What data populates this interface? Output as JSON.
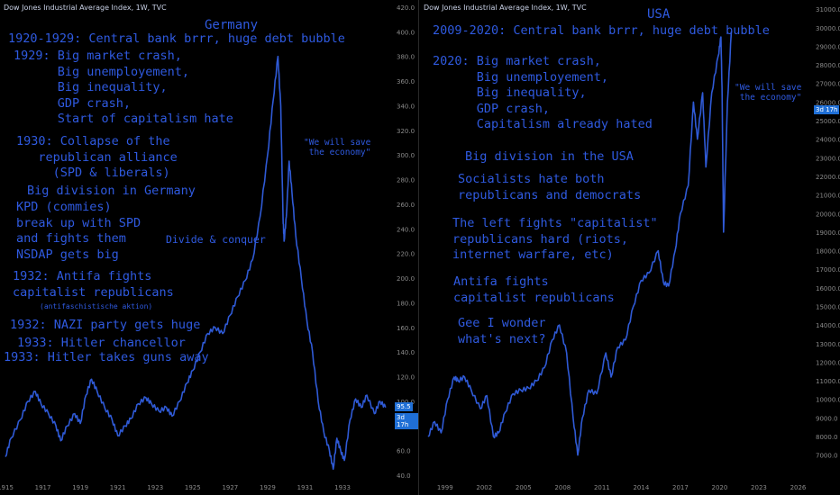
{
  "chart_data": [
    {
      "type": "line",
      "title": "Dow Jones Industrial Average Index, 1W, TVC",
      "region_label": "Germany",
      "x_ticks": [
        "1915",
        "1917",
        "1919",
        "1921",
        "1923",
        "1925",
        "1927",
        "1929",
        "1931",
        "1933"
      ],
      "y_ticks": [
        "40.0",
        "60.0",
        "80.0",
        "100.0",
        "120.0",
        "140.0",
        "160.0",
        "180.0",
        "200.0",
        "220.0",
        "240.0",
        "260.0",
        "280.0",
        "300.0",
        "320.0",
        "340.0",
        "360.0",
        "380.0",
        "400.0",
        "420.0"
      ],
      "xlim": [
        1915.0,
        1935.5
      ],
      "ylim": [
        40,
        420
      ],
      "series": [
        {
          "x": [
            1915.0,
            1915.3,
            1915.8,
            1916.2,
            1916.6,
            1916.9,
            1917.3,
            1917.7,
            1917.95,
            1918.3,
            1918.7,
            1919.0,
            1919.3,
            1919.6,
            1919.9,
            1920.3,
            1920.7,
            1921.0,
            1921.4,
            1921.7,
            1922.1,
            1922.5,
            1922.8,
            1923.2,
            1923.6,
            1923.9,
            1924.3,
            1924.7,
            1925.0,
            1925.4,
            1925.8,
            1926.2,
            1926.6,
            1927.0,
            1927.4,
            1927.8,
            1928.2,
            1928.6,
            1929.0,
            1929.3,
            1929.55,
            1929.7,
            1929.82,
            1929.88,
            1930.0,
            1930.15,
            1930.3,
            1930.5,
            1930.8,
            1931.1,
            1931.4,
            1931.7,
            1932.0,
            1932.3,
            1932.5,
            1932.7,
            1932.9,
            1933.1,
            1933.4,
            1933.7,
            1934.0,
            1934.3,
            1934.7,
            1935.0,
            1935.3
          ],
          "y": [
            55,
            70,
            85,
            100,
            108,
            98,
            90,
            80,
            68,
            80,
            90,
            82,
            105,
            118,
            108,
            95,
            85,
            72,
            80,
            86,
            98,
            103,
            98,
            92,
            95,
            88,
            100,
            115,
            125,
            140,
            155,
            160,
            155,
            170,
            185,
            198,
            215,
            250,
            300,
            345,
            380,
            340,
            250,
            230,
            250,
            295,
            270,
            235,
            200,
            165,
            140,
            100,
            75,
            60,
            45,
            70,
            60,
            52,
            85,
            102,
            95,
            105,
            90,
            100,
            95
          ]
        }
      ],
      "last_value": "95.5",
      "countdown": "3d 17h",
      "annotations": {
        "line1": "1920-1929: Central bank brrr, huge debt bubble",
        "block2": "1929: Big market crash,\n      Big unemployement,\n      Big inequality,\n      GDP crash,\n      Start of capitalism hate",
        "block3": "1930: Collapse of the\n   republican alliance\n     (SPD & liberals)",
        "block4": "Big division in Germany",
        "block5": "KPD (commies)\nbreak up with SPD\nand fights them\nNSDAP gets big",
        "divide": "Divide & conquer",
        "save": "\"We will save\n the economy\"",
        "block6": "1932: Antifa fights\ncapitalist republicans",
        "antifa": "(antifaschistische aktion)",
        "block7": "1932: NAZI party gets huge",
        "block8": "1933: Hitler chancellor",
        "block9": "1933: Hitler takes guns away"
      }
    },
    {
      "type": "line",
      "title": "Dow Jones Industrial Average Index, 1W, TVC",
      "region_label": "USA",
      "x_ticks": [
        "1999",
        "2002",
        "2005",
        "2008",
        "2011",
        "2014",
        "2017",
        "2020",
        "2023",
        "2026"
      ],
      "y_ticks": [
        "7000.0",
        "8000.0",
        "9000.0",
        "10000.0",
        "11000.0",
        "12000.0",
        "13000.0",
        "14000.0",
        "15000.0",
        "16000.0",
        "17000.0",
        "18000.0",
        "19000.0",
        "20000.0",
        "21000.0",
        "22000.0",
        "23000.0",
        "24000.0",
        "25000.0",
        "26000.0",
        "27000.0",
        "28000.0",
        "29000.0",
        "30000.0",
        "31000.0"
      ],
      "xlim": [
        1997.5,
        2027.0
      ],
      "ylim": [
        6500,
        31200
      ],
      "series": [
        {
          "x": [
            1997.7,
            1998.2,
            1998.7,
            1999.2,
            1999.7,
            2000.0,
            2000.5,
            2001.0,
            2001.7,
            2002.2,
            2002.7,
            2003.1,
            2003.6,
            2004.2,
            2004.8,
            2005.4,
            2006.0,
            2006.6,
            2007.2,
            2007.75,
            2008.3,
            2008.8,
            2009.15,
            2009.5,
            2010.0,
            2010.6,
            2011.3,
            2011.7,
            2012.2,
            2012.8,
            2013.4,
            2014.0,
            2014.6,
            2015.3,
            2015.7,
            2016.1,
            2016.6,
            2017.0,
            2017.6,
            2018.0,
            2018.3,
            2018.7,
            2018.95,
            2019.4,
            2019.9,
            2020.1,
            2020.2,
            2020.3,
            2020.6,
            2020.9
          ],
          "y": [
            8000,
            8800,
            8200,
            10000,
            11200,
            11000,
            11200,
            10500,
            9500,
            10200,
            8000,
            8200,
            9300,
            10300,
            10500,
            10600,
            11000,
            11700,
            13200,
            14000,
            12500,
            9000,
            7000,
            9000,
            10500,
            10300,
            12500,
            11200,
            12800,
            13200,
            15000,
            16400,
            16800,
            18000,
            16300,
            16100,
            18000,
            20000,
            21500,
            26000,
            24000,
            26500,
            22500,
            26500,
            28500,
            29500,
            26000,
            19000,
            26000,
            29800
          ]
        }
      ],
      "last_value": "3d 17h",
      "annotations": {
        "line1": "2009-2020: Central bank brrr, huge debt bubble",
        "save": "\"We will save\n the economy\"",
        "block2": "2020: Big market crash,\n      Big unemployement,\n      Big inequality,\n      GDP crash,\n      Capitalism already hated",
        "block3": "Big division in the USA",
        "block4": "Socialists hate both\nrepublicans and democrats",
        "block5": "The left fights \"capitalist\"\nrepublicans hard (riots,\ninternet warfare, etc)",
        "block6": "Antifa fights\ncapitalist republicans",
        "block7": "Gee I wonder\nwhat's next?"
      }
    }
  ],
  "colors": {
    "line": "#2f5ad6",
    "text": "#2f5ae0",
    "axis": "#8a8a8a",
    "badge": "#1f6fd6"
  }
}
